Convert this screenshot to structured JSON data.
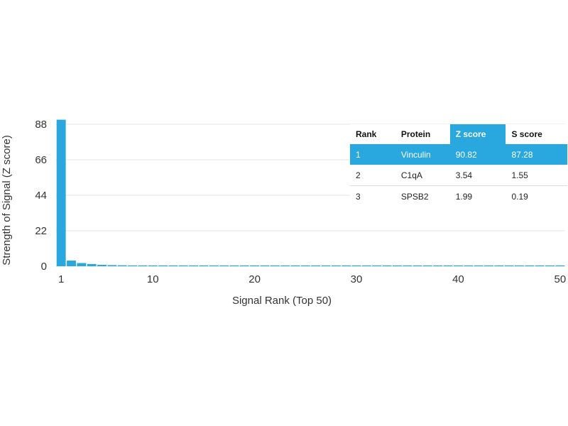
{
  "chart_data": {
    "type": "bar",
    "xlabel": "Signal Rank (Top 50)",
    "ylabel": "Strength of Signal (Z score)",
    "ylim": [
      0,
      88
    ],
    "yticks": [
      0,
      22,
      44,
      66,
      88
    ],
    "xticks": [
      1,
      10,
      20,
      30,
      40,
      50
    ],
    "x": [
      1,
      2,
      3,
      4,
      5,
      6,
      7,
      8,
      9,
      10,
      11,
      12,
      13,
      14,
      15,
      16,
      17,
      18,
      19,
      20,
      21,
      22,
      23,
      24,
      25,
      26,
      27,
      28,
      29,
      30,
      31,
      32,
      33,
      34,
      35,
      36,
      37,
      38,
      39,
      40,
      41,
      42,
      43,
      44,
      45,
      46,
      47,
      48,
      49,
      50
    ],
    "values": [
      90.82,
      3.54,
      1.99,
      1.4,
      0.9,
      0.7,
      0.6,
      0.5,
      0.5,
      0.4,
      0.4,
      0.4,
      0.35,
      0.35,
      0.35,
      0.3,
      0.3,
      0.3,
      0.3,
      0.3,
      0.3,
      0.3,
      0.3,
      0.3,
      0.3,
      0.3,
      0.3,
      0.3,
      0.3,
      0.3,
      0.3,
      0.3,
      0.3,
      0.3,
      0.3,
      0.3,
      0.3,
      0.3,
      0.3,
      0.3,
      0.3,
      0.3,
      0.3,
      0.3,
      0.3,
      0.3,
      0.3,
      0.3,
      0.3,
      0.3
    ],
    "grid": true,
    "colors": {
      "bar": "#29a8df",
      "highlight": "#29a8df"
    }
  },
  "table": {
    "headers": [
      "Rank",
      "Protein",
      "Z score",
      "S score"
    ],
    "rows": [
      [
        "1",
        "Vinculin",
        "90.82",
        "87.28"
      ],
      [
        "2",
        "C1qA",
        "3.54",
        "1.55"
      ],
      [
        "3",
        "SPSB2",
        "1.99",
        "0.19"
      ]
    ]
  }
}
